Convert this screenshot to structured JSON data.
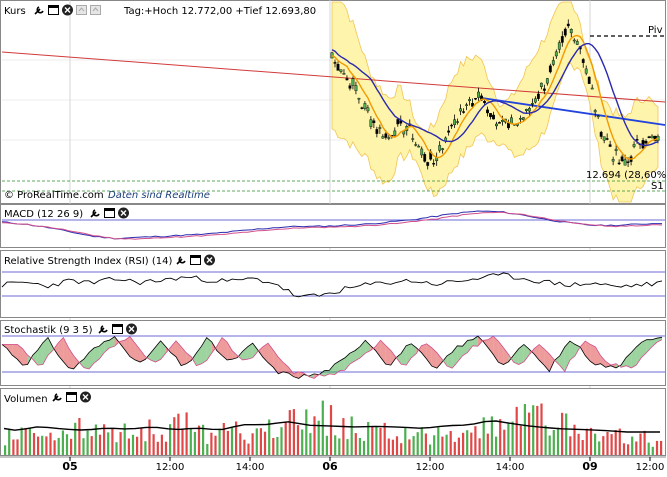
{
  "colors": {
    "bands": "#fff4a8",
    "bands_edge": "#f0c24a",
    "ma_orange": "#f29a00",
    "ma_blue": "#2a2ab0",
    "trend_red": "#d13a3a",
    "trend_blue": "#2244dd",
    "macd_pink": "#d2508c",
    "macd_blue": "#2a2ab0",
    "vol_green": "#4caf50",
    "vol_red": "#e04848",
    "grid_green": "#2e8b2e",
    "rsi_fill": "#7fb59a"
  },
  "icons": [
    "wrench-icon",
    "window-icon",
    "close-icon",
    "maximize-icon",
    "restore-icon"
  ],
  "panels": {
    "price": {
      "name": "Kurs",
      "info": "Tag:+Hoch 12.772,00 +Tief 12.693,80",
      "watermark": "© ProRealTime.com",
      "realtime": "Daten sind Realtime",
      "piv_label": "Piv",
      "s1_label": "S1",
      "last_label": "12.694 (28,60%)"
    },
    "macd": {
      "name": "MACD (12 26 9)"
    },
    "rsi": {
      "name": "Relative Strength Index (RSI) (14)"
    },
    "stoch": {
      "name": "Stochastik (9 3 5)"
    },
    "volume": {
      "name": "Volumen"
    }
  },
  "xaxis": [
    {
      "label": "05",
      "bold": true
    },
    {
      "label": "12:00",
      "bold": false
    },
    {
      "label": "14:00",
      "bold": false
    },
    {
      "label": "06",
      "bold": true
    },
    {
      "label": "12:00",
      "bold": false
    },
    {
      "label": "14:00",
      "bold": false
    },
    {
      "label": "09",
      "bold": true
    },
    {
      "label": "12:00",
      "bold": false
    }
  ],
  "chart_data": {
    "type": "line",
    "x_labels": [
      "05",
      "12:00",
      "14:00",
      "06",
      "12:00",
      "14:00",
      "09",
      "12:00"
    ],
    "price_close": [
      12760,
      12752,
      12742,
      12730,
      12718,
      12712,
      12722,
      12718,
      12705,
      12700,
      12712,
      12725,
      12732,
      12738,
      12730,
      12722,
      12720,
      12726,
      12735,
      12745,
      12760,
      12775,
      12768,
      12742,
      12718,
      12705,
      12698,
      12708,
      12715,
      12712
    ],
    "series": [
      {
        "name": "MACD (12 26 9)",
        "values": [
          0,
          -2,
          -5,
          -9,
          -13,
          -15,
          -14,
          -13,
          -12,
          -11,
          -9,
          -7,
          -5,
          -4,
          -4,
          -3,
          -2,
          0,
          2,
          5,
          8,
          10,
          9,
          6,
          2,
          -1,
          -3,
          -3,
          -2,
          -1
        ]
      },
      {
        "name": "Relative Strength Index (RSI) (14)",
        "values": [
          55,
          58,
          54,
          60,
          57,
          62,
          58,
          60,
          64,
          61,
          59,
          62,
          57,
          41,
          43,
          50,
          55,
          58,
          60,
          56,
          59,
          63,
          66,
          62,
          58,
          55,
          57,
          53,
          55,
          57
        ]
      },
      {
        "name": "Stochastik (9 3 5)",
        "values": [
          70,
          30,
          80,
          20,
          60,
          85,
          30,
          75,
          25,
          80,
          35,
          70,
          20,
          10,
          15,
          40,
          80,
          30,
          75,
          20,
          65,
          85,
          30,
          70,
          20,
          80,
          35,
          25,
          75,
          80
        ]
      },
      {
        "name": "Volumen",
        "values": [
          30,
          45,
          28,
          52,
          40,
          35,
          48,
          42,
          55,
          38,
          46,
          33,
          60,
          58,
          72,
          50,
          44,
          38,
          41,
          36,
          30,
          46,
          52,
          80,
          62,
          48,
          40,
          37,
          33,
          26
        ]
      }
    ]
  }
}
